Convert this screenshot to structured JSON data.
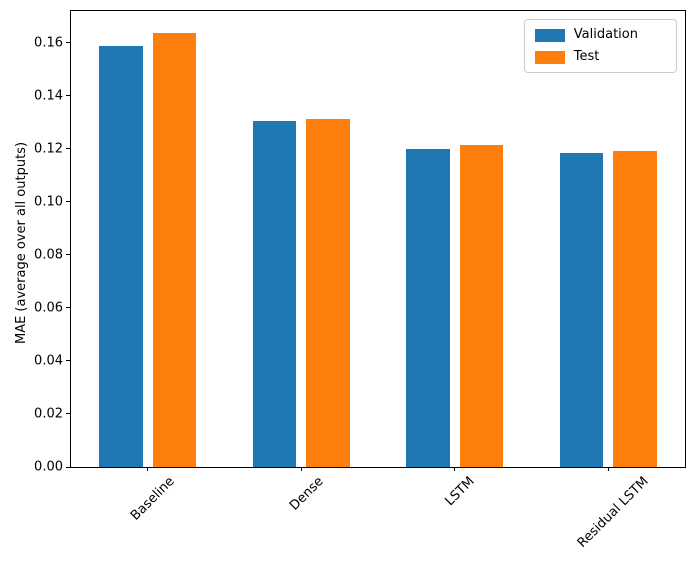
{
  "chart_data": {
    "type": "bar",
    "title": "",
    "xlabel": "",
    "ylabel": "MAE (average over all outputs)",
    "categories": [
      "Baseline",
      "Dense",
      "LSTM",
      "Residual LSTM"
    ],
    "series": [
      {
        "name": "Validation",
        "color": "#1f77b4",
        "values": [
          0.1589,
          0.1306,
          0.12,
          0.1185
        ]
      },
      {
        "name": "Test",
        "color": "#ff7f0e",
        "values": [
          0.1638,
          0.1311,
          0.1214,
          0.1193
        ]
      }
    ],
    "ylim": [
      0,
      0.172
    ],
    "yticks": [
      0.0,
      0.02,
      0.04,
      0.06,
      0.08,
      0.1,
      0.12,
      0.14,
      0.16
    ],
    "ytick_format_decimals": 2,
    "x_tick_rotation_deg": 45,
    "legend_position": "upper right",
    "grid": false,
    "colors": {
      "validation": "#1f77b4",
      "test": "#ff7f0e",
      "axis": "#000000",
      "legend_border": "#cccccc"
    }
  }
}
